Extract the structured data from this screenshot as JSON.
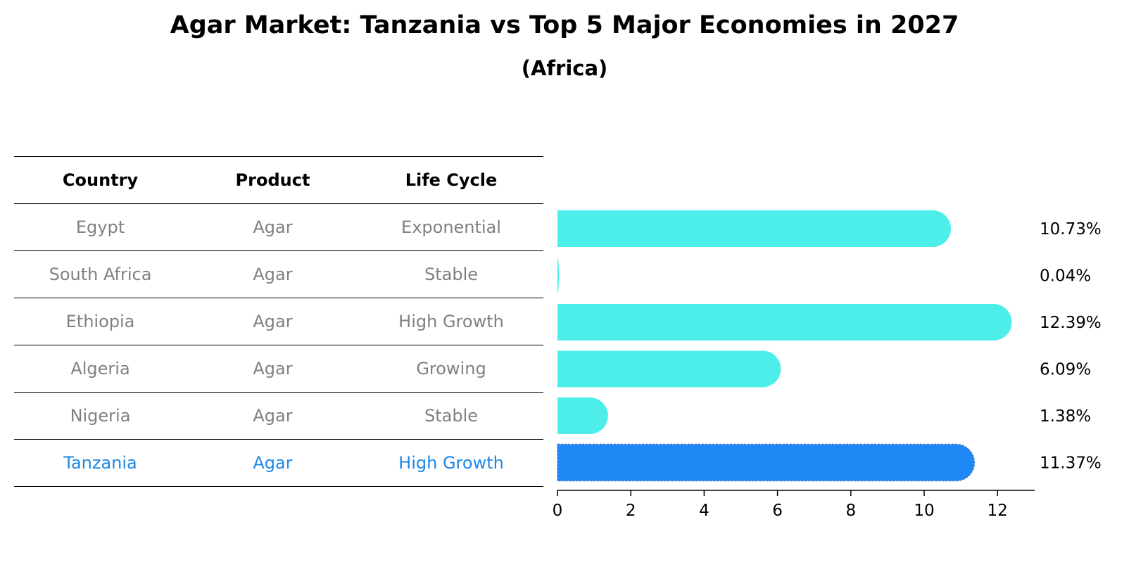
{
  "title": "Agar Market: Tanzania vs Top 5 Major Economies in 2027",
  "subtitle": "(Africa)",
  "table": {
    "headers": [
      "Country",
      "Product",
      "Life Cycle"
    ],
    "rows": [
      {
        "country": "Egypt",
        "product": "Agar",
        "life_cycle": "Exponential"
      },
      {
        "country": "South Africa",
        "product": "Agar",
        "life_cycle": "Stable"
      },
      {
        "country": "Ethiopia",
        "product": "Agar",
        "life_cycle": "High Growth"
      },
      {
        "country": "Algeria",
        "product": "Agar",
        "life_cycle": "Growing"
      },
      {
        "country": "Nigeria",
        "product": "Agar",
        "life_cycle": "Stable"
      },
      {
        "country": "Tanzania",
        "product": "Agar",
        "life_cycle": "High Growth"
      }
    ]
  },
  "chart_data": {
    "type": "bar",
    "orientation": "horizontal",
    "title": "Agar Market: Tanzania vs Top 5 Major Economies in 2027",
    "subtitle": "(Africa)",
    "categories": [
      "Egypt",
      "South Africa",
      "Ethiopia",
      "Algeria",
      "Nigeria",
      "Tanzania"
    ],
    "values": [
      10.73,
      0.04,
      12.39,
      6.09,
      1.38,
      11.37
    ],
    "value_labels": [
      "10.73%",
      "0.04%",
      "12.39%",
      "6.09%",
      "1.38%",
      "11.37%"
    ],
    "highlight_index": 5,
    "xlim": [
      0,
      13
    ],
    "xticks": [
      0,
      2,
      4,
      6,
      8,
      10,
      12
    ],
    "xlabel": "",
    "ylabel": "",
    "grid": false,
    "colors": {
      "default": "#4deeea",
      "highlight": "#1e88f5",
      "highlight_text": "#1e88e5"
    }
  }
}
